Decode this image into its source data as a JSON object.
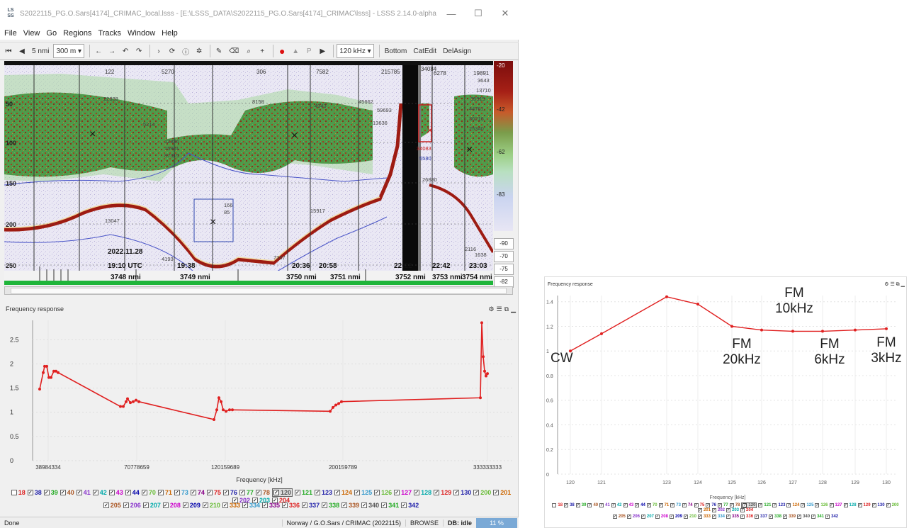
{
  "window": {
    "app_icon": "LS SS",
    "title": "S2022115_PG.O.Sars[4174]_CRIMAC_local.lsss - [E:\\LSSS_DATA\\S2022115_PG.O.Sars[4174]_CRIMAC\\lsss] - LSSS 2.14.0-alpha",
    "minimize": "—",
    "maximize": "☐",
    "close": "✕"
  },
  "menu": [
    "File",
    "View",
    "Go",
    "Regions",
    "Tracks",
    "Window",
    "Help"
  ],
  "toolbar": {
    "nmi": "5 nmi",
    "range": "300 m",
    "freq": "120 kHz",
    "bottom": "Bottom",
    "catedit": "CatEdit",
    "delassign": "DelAsign",
    "icons": [
      "first-icon",
      "prev-icon",
      "next-icon",
      "last-icon",
      "sync-icon",
      "info-icon",
      "settings-icon",
      "pencil-icon",
      "eraser-icon",
      "zoom-icon",
      "crosshair-icon",
      "record-icon",
      "flag-icon",
      "pause-icon",
      "play-icon"
    ]
  },
  "echogram": {
    "depth_ticks": [
      "50",
      "100",
      "150",
      "200",
      "250"
    ],
    "date": "2022.11.28",
    "times": [
      "19:10 UTC",
      "19:38",
      "20:36",
      "20:58",
      "22:22",
      "22:42",
      "23:03"
    ],
    "nmi": [
      "3748 nmi",
      "3749 nmi",
      "3750 nmi",
      "3751 nmi",
      "3752 nmi",
      "3753 nmi",
      "3754 nmi"
    ],
    "top_labels": [
      "122",
      "5270",
      "306",
      "7582",
      "215785",
      "34084",
      "6278",
      "19891"
    ],
    "region_labels": [
      "22338",
      "5214",
      "12886",
      "15901",
      "87315",
      "8158",
      "4943",
      "45662",
      "59693",
      "13636",
      "34083",
      "5580",
      "26880",
      "3643",
      "13710",
      "35915",
      "44761",
      "36216",
      "25340",
      "13047",
      "166",
      "85",
      "15917",
      "7357",
      "4193",
      "2116",
      "1638"
    ],
    "colorbar_values": [
      "-20",
      "-42",
      "-62",
      "-83",
      "-90",
      "-70",
      "-75",
      "-82"
    ]
  },
  "freq_panel": {
    "title": "Frequency response",
    "header_icons": [
      "gear-icon",
      "list-icon",
      "copy-icon",
      "minimize-icon"
    ],
    "y_ticks": [
      "2.5",
      "2",
      "1.5",
      "1",
      "0.5",
      "0"
    ],
    "x_ticks": [
      "38984334",
      "70778659",
      "120159689",
      "200159789",
      "333333333"
    ],
    "xlabel": "Frequency [kHz]"
  },
  "checkboxes_row1": [
    "18",
    "38",
    "39",
    "40",
    "41",
    "42",
    "43",
    "44",
    "70",
    "71",
    "73",
    "74",
    "75",
    "76",
    "77",
    "78",
    "120",
    "121",
    "123",
    "124",
    "125",
    "126",
    "127",
    "128",
    "129",
    "130",
    "200",
    "201",
    "202",
    "203",
    "204"
  ],
  "checkboxes_row2": [
    "205",
    "206",
    "207",
    "208",
    "209",
    "210",
    "333",
    "334",
    "335",
    "336",
    "337",
    "338",
    "339",
    "340",
    "341",
    "342"
  ],
  "checkbox_colors": [
    "#d22",
    "#22a",
    "#2a2",
    "#a52",
    "#83c",
    "#0aa",
    "#c0c",
    "#00a",
    "#6b3",
    "#c60",
    "#39c",
    "#808",
    "#d22",
    "#22a",
    "#2a2",
    "#a52",
    "#555",
    "#2a2",
    "#22a",
    "#c60",
    "#39c",
    "#6b3",
    "#c0c",
    "#0aa",
    "#d22",
    "#22a",
    "#6b3",
    "#c60",
    "#83c",
    "#0aa",
    "#d22"
  ],
  "selected_checkbox": "120",
  "status": {
    "left": "Done",
    "ship": "Norway / G.O.Sars / CRIMAC (2022115)",
    "mode": "BROWSE",
    "db": "DB: idle",
    "pct": "11 %"
  },
  "inset": {
    "title": "Frequency response",
    "y_ticks": [
      "1.4",
      "1.2",
      "1",
      "0.8",
      "0.6",
      "0.4",
      "0.2",
      "0"
    ],
    "x_ticks": [
      "120",
      "121",
      "123",
      "124",
      "125",
      "126",
      "127",
      "128",
      "129",
      "130"
    ],
    "xlabel": "Frequency [kHz]",
    "annotations": {
      "cw": "CW",
      "fm20_a": "FM",
      "fm20_b": "20kHz",
      "fm10_a": "FM",
      "fm10_b": "10kHz",
      "fm6_a": "FM",
      "fm6_b": "6kHz",
      "fm3_a": "FM",
      "fm3_b": "3kHz"
    },
    "checkboxes_row1": [
      "18",
      "38",
      "39",
      "40",
      "41",
      "42",
      "43",
      "44",
      "70",
      "71",
      "73",
      "74",
      "75",
      "76",
      "77",
      "78",
      "120",
      "121",
      "123",
      "124",
      "125",
      "126",
      "127",
      "128",
      "129",
      "130",
      "200",
      "201",
      "202",
      "203",
      "204"
    ],
    "checkboxes_row2": [
      "205",
      "206",
      "207",
      "208",
      "209",
      "210",
      "333",
      "334",
      "335",
      "336",
      "337",
      "338",
      "339",
      "340",
      "341",
      "342"
    ]
  },
  "chart_data": [
    {
      "type": "line",
      "title": "Frequency response",
      "xlabel": "Frequency [kHz]",
      "ylim": [
        0,
        2.9
      ],
      "series": [
        {
          "values": [
            1.48,
            1.82,
            1.95,
            1.95,
            1.72,
            1.72,
            1.85,
            1.85,
            1.82,
            1.12,
            1.12,
            1.22,
            1.28,
            1.2,
            1.22,
            1.25,
            1.22,
            0.85,
            1.05,
            1.3,
            1.22,
            1.05,
            1.02,
            1.05,
            1.05,
            1.02,
            1.1,
            1.15,
            1.18,
            1.22,
            1.3,
            2.85,
            2.15,
            1.85,
            1.75,
            1.8
          ]
        }
      ]
    },
    {
      "type": "line",
      "title": "Frequency response",
      "xlabel": "Frequency [kHz]",
      "categories": [
        "120",
        "121",
        "123",
        "124",
        "125",
        "126",
        "127",
        "128",
        "129",
        "130"
      ],
      "ylim": [
        0,
        1.45
      ],
      "series": [
        {
          "values": [
            1.0,
            1.14,
            1.44,
            1.38,
            1.2,
            1.17,
            1.16,
            1.16,
            1.17,
            1.18
          ]
        }
      ]
    }
  ],
  "colors": {
    "curve": "#e02020",
    "accent": "#7aa9d6"
  }
}
